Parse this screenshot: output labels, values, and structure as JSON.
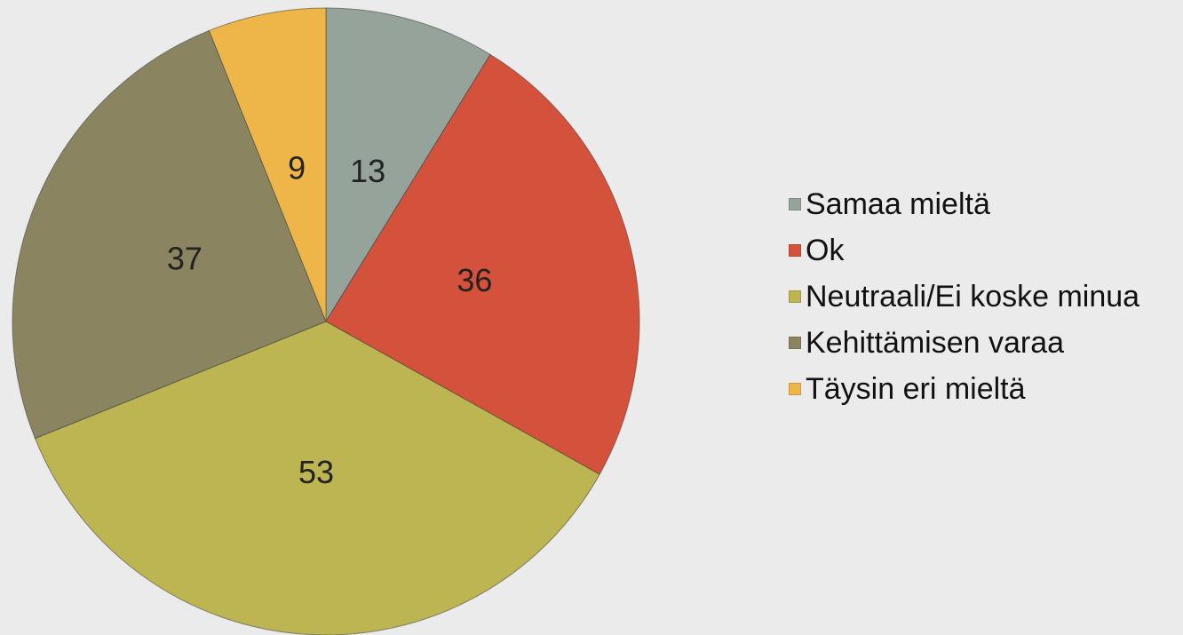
{
  "chart_data": {
    "type": "pie",
    "categories": [
      "Samaa mieltä",
      "Ok",
      "Neutraali/Ei koske minua",
      "Kehittämisen varaa",
      "Täysin eri mieltä"
    ],
    "values": [
      13,
      36,
      53,
      37,
      9
    ],
    "colors": [
      "#95a39a",
      "#d4523b",
      "#bcb551",
      "#8a8560",
      "#eeb648"
    ],
    "legend": "right"
  }
}
